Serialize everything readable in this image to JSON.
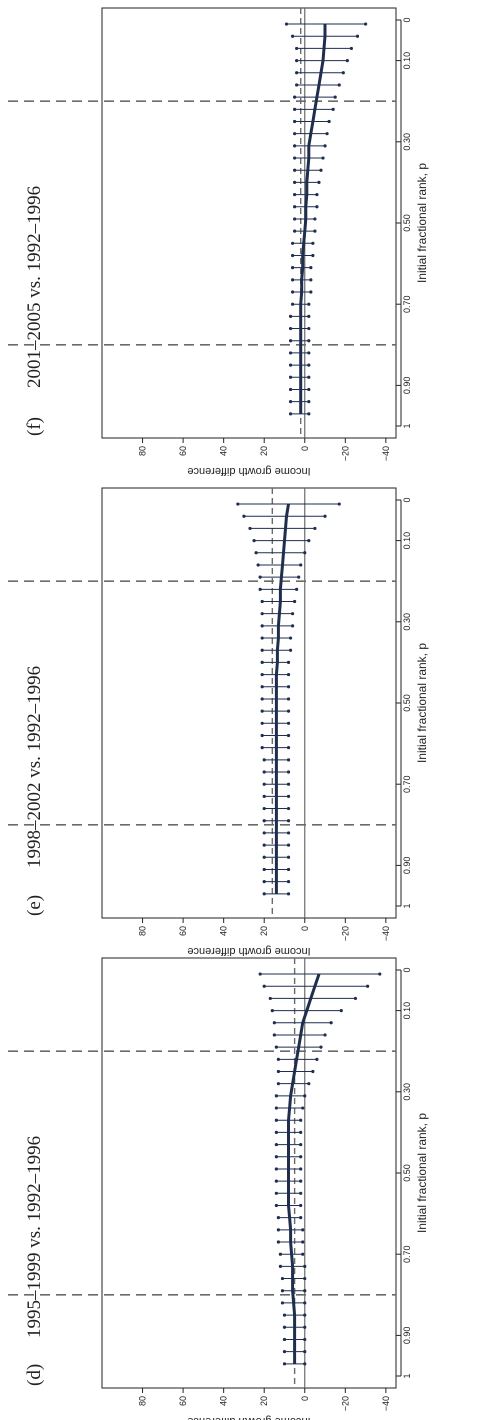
{
  "chart_data": [
    {
      "type": "line",
      "panel_label": "(d)",
      "title": "1995–1999 vs. 1992–1996",
      "xlabel": "Initial fractional rank, p",
      "ylabel": "Income growth difference",
      "xlim": [
        0,
        1
      ],
      "ylim": [
        -45,
        100
      ],
      "x_ticks": [
        0,
        0.1,
        0.3,
        0.5,
        0.7,
        0.9,
        1
      ],
      "x_tick_labels": [
        "0",
        "0.10",
        "0.30",
        "0.50",
        "0.70",
        "0.90",
        "1"
      ],
      "y_ticks": [
        -40,
        -20,
        0,
        20,
        40,
        60,
        80
      ],
      "y_tick_labels": [
        "−40",
        "−20",
        "0",
        "20",
        "40",
        "60",
        "80"
      ],
      "reference_lines": {
        "vertical": [
          0.2,
          0.8
        ],
        "horizontal_dashed": 5,
        "horizontal_solid": 0
      },
      "x": [
        0.01,
        0.04,
        0.07,
        0.1,
        0.13,
        0.16,
        0.19,
        0.22,
        0.25,
        0.28,
        0.31,
        0.34,
        0.37,
        0.4,
        0.43,
        0.46,
        0.49,
        0.52,
        0.55,
        0.58,
        0.61,
        0.64,
        0.67,
        0.7,
        0.73,
        0.76,
        0.79,
        0.82,
        0.85,
        0.88,
        0.91,
        0.94,
        0.97
      ],
      "estimate": [
        -7,
        -5,
        -3,
        -1,
        1,
        2,
        3,
        4,
        5,
        6,
        7,
        7.5,
        8,
        8,
        8,
        8,
        8,
        8,
        8,
        8,
        7.5,
        7,
        7,
        6.5,
        6,
        6,
        6,
        5.5,
        5,
        5,
        5,
        5,
        5
      ],
      "upper": [
        22,
        20,
        17,
        16,
        15,
        15,
        14,
        13,
        13,
        13,
        14,
        14,
        14,
        14,
        14,
        14,
        14,
        14,
        14,
        14,
        13,
        13,
        13,
        12,
        12,
        11,
        11,
        11,
        10,
        10,
        10,
        10,
        10
      ],
      "lower": [
        -37,
        -31,
        -25,
        -18,
        -13,
        -10,
        -8,
        -6,
        -4,
        -2,
        0,
        1,
        2,
        2,
        2,
        2,
        2,
        2,
        2,
        2,
        2,
        1,
        1,
        1,
        0,
        0,
        0,
        0,
        0,
        0,
        0,
        0,
        0
      ]
    },
    {
      "type": "line",
      "panel_label": "(e)",
      "title": "1998–2002 vs. 1992–1996",
      "xlabel": "Initial fractional rank, p",
      "ylabel": "Income growth difference",
      "xlim": [
        0,
        1
      ],
      "ylim": [
        -45,
        100
      ],
      "x_ticks": [
        0,
        0.1,
        0.3,
        0.5,
        0.7,
        0.9,
        1
      ],
      "x_tick_labels": [
        "0",
        "0.10",
        "0.30",
        "0.50",
        "0.70",
        "0.90",
        "1"
      ],
      "y_ticks": [
        -40,
        -20,
        0,
        20,
        40,
        60,
        80
      ],
      "y_tick_labels": [
        "−40",
        "−20",
        "0",
        "20",
        "40",
        "60",
        "80"
      ],
      "reference_lines": {
        "vertical": [
          0.2,
          0.8
        ],
        "horizontal_dashed": 16,
        "horizontal_solid": 0
      },
      "x": [
        0.01,
        0.04,
        0.07,
        0.1,
        0.13,
        0.16,
        0.19,
        0.22,
        0.25,
        0.28,
        0.31,
        0.34,
        0.37,
        0.4,
        0.43,
        0.46,
        0.49,
        0.52,
        0.55,
        0.58,
        0.61,
        0.64,
        0.67,
        0.7,
        0.73,
        0.76,
        0.79,
        0.82,
        0.85,
        0.88,
        0.91,
        0.94,
        0.97
      ],
      "estimate": [
        8,
        9,
        9.5,
        10,
        10.5,
        11,
        11.5,
        12,
        12,
        12.5,
        13,
        13,
        13.5,
        13.5,
        14,
        14,
        14,
        14,
        14,
        14,
        14,
        14,
        14,
        14,
        14,
        14,
        14,
        14,
        14,
        14,
        14,
        14,
        14
      ],
      "upper": [
        33,
        30,
        27,
        25,
        24,
        23,
        22,
        22,
        21,
        21,
        21,
        21,
        21,
        21,
        21,
        21,
        21,
        21,
        21,
        21,
        21,
        20,
        20,
        20,
        20,
        20,
        20,
        20,
        20,
        20,
        20,
        20,
        20
      ],
      "lower": [
        -17,
        -10,
        -5,
        -2,
        0,
        2,
        3,
        4,
        5,
        6,
        6,
        7,
        7,
        8,
        8,
        8,
        8,
        8,
        8,
        8,
        8,
        8,
        8,
        8,
        8,
        8,
        8,
        8,
        8,
        8,
        8,
        8,
        8
      ]
    },
    {
      "type": "line",
      "panel_label": "(f)",
      "title": "2001–2005 vs. 1992–1996",
      "xlabel": "Initial fractional rank, p",
      "ylabel": "Income growth difference",
      "xlim": [
        0,
        1
      ],
      "ylim": [
        -45,
        100
      ],
      "x_ticks": [
        0,
        0.1,
        0.3,
        0.5,
        0.7,
        0.9,
        1
      ],
      "x_tick_labels": [
        "0",
        "0.10",
        "0.30",
        "0.50",
        "0.70",
        "0.90",
        "1"
      ],
      "y_ticks": [
        -40,
        -20,
        0,
        20,
        40,
        60,
        80
      ],
      "y_tick_labels": [
        "−40",
        "−20",
        "0",
        "20",
        "40",
        "60",
        "80"
      ],
      "reference_lines": {
        "vertical": [
          0.2,
          0.8
        ],
        "horizontal_dashed": 2,
        "horizontal_solid": 0
      },
      "x": [
        0.01,
        0.04,
        0.07,
        0.1,
        0.13,
        0.16,
        0.19,
        0.22,
        0.25,
        0.28,
        0.31,
        0.34,
        0.37,
        0.4,
        0.43,
        0.46,
        0.49,
        0.52,
        0.55,
        0.58,
        0.61,
        0.64,
        0.67,
        0.7,
        0.73,
        0.76,
        0.79,
        0.82,
        0.85,
        0.88,
        0.91,
        0.94,
        0.97
      ],
      "estimate": [
        -10,
        -10,
        -9.5,
        -9,
        -8,
        -7,
        -6,
        -5,
        -4,
        -3,
        -2,
        -2,
        -1.5,
        -1,
        -1,
        -0.5,
        -0.5,
        0,
        0.5,
        1,
        1,
        1.5,
        1.5,
        2,
        2,
        2,
        2,
        2,
        2,
        2,
        2,
        2,
        2
      ],
      "upper": [
        9,
        6,
        4,
        4,
        4,
        4,
        5,
        5,
        5,
        5,
        5,
        5,
        5,
        5,
        5,
        5,
        5,
        5,
        6,
        6,
        6,
        6,
        6,
        6,
        7,
        7,
        7,
        7,
        7,
        7,
        7,
        7,
        7
      ],
      "lower": [
        -30,
        -26,
        -23,
        -21,
        -19,
        -17,
        -15,
        -14,
        -12,
        -11,
        -10,
        -9,
        -8,
        -7,
        -6,
        -6,
        -5,
        -5,
        -4,
        -4,
        -3,
        -3,
        -3,
        -2,
        -2,
        -2,
        -2,
        -2,
        -2,
        -2,
        -2,
        -2,
        -2
      ]
    }
  ]
}
